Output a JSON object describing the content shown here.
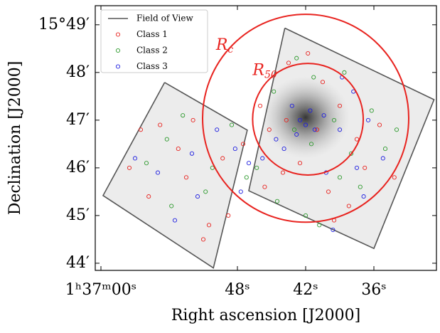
{
  "chart_data": {
    "type": "scatter",
    "xlabel": "Right ascension [J2000]",
    "ylabel": "Declination [J2000]",
    "xlim": [
      60.5,
      30.5
    ],
    "ylim": [
      43.85,
      49.4
    ],
    "xticks": [
      {
        "value": 60,
        "label": "1ʰ37ᵐ00ˢ"
      },
      {
        "value": 48,
        "label": "48ˢ"
      },
      {
        "value": 42,
        "label": "42ˢ"
      },
      {
        "value": 36,
        "label": "36ˢ"
      }
    ],
    "yticks": [
      {
        "value": 44,
        "label": "44′"
      },
      {
        "value": 45,
        "label": "45′"
      },
      {
        "value": 46,
        "label": "46′"
      },
      {
        "value": 47,
        "label": "47′"
      },
      {
        "value": 48,
        "label": "48′"
      },
      {
        "value": 49,
        "label": "15°49′"
      }
    ],
    "legend": "upper left",
    "series": [
      {
        "name": "Field of View",
        "color": "#555555",
        "marker": "line",
        "x": [
          43.83,
          30.71,
          36.0,
          47.0,
          43.83,
          null,
          54.4,
          47.13,
          50.11,
          59.81,
          54.4
        ],
        "y": [
          48.93,
          47.43,
          44.31,
          45.52,
          48.93,
          null,
          47.79,
          46.79,
          43.9,
          45.42,
          47.79
        ]
      },
      {
        "name": "Class 1",
        "color": "#e8231f",
        "marker": "circle",
        "x": [
          56.5,
          55.8,
          57.5,
          53.2,
          51.9,
          50.5,
          51.0,
          49.3,
          47.5,
          46.0,
          45.2,
          44.0,
          43.5,
          41.8,
          40.5,
          39.0,
          37.5,
          36.8,
          38.2,
          40.0,
          42.5,
          43.7,
          41.0,
          35.5,
          34.2,
          39.5,
          45.6,
          52.5,
          54.8,
          48.8
        ],
        "y": [
          46.8,
          45.4,
          46.0,
          46.4,
          47.0,
          44.8,
          44.5,
          46.2,
          46.5,
          47.3,
          46.8,
          45.9,
          48.2,
          48.4,
          47.8,
          47.3,
          46.6,
          46.0,
          45.2,
          45.5,
          46.1,
          47.0,
          46.8,
          46.9,
          45.8,
          44.9,
          45.6,
          45.8,
          46.9,
          45.0
        ]
      },
      {
        "name": "Class 2",
        "color": "#2e9a2e",
        "marker": "circle",
        "x": [
          56.0,
          54.2,
          52.8,
          50.2,
          48.5,
          47.2,
          46.3,
          44.8,
          42.8,
          41.3,
          39.5,
          38.0,
          36.2,
          35.0,
          37.2,
          39.0,
          41.5,
          43.0,
          44.5,
          42.0,
          40.8,
          38.6,
          53.8,
          50.8,
          34.0
        ],
        "y": [
          46.1,
          46.6,
          47.1,
          46.0,
          46.9,
          45.8,
          46.0,
          47.6,
          48.3,
          47.9,
          47.0,
          46.3,
          47.2,
          46.4,
          45.6,
          45.8,
          46.5,
          46.8,
          45.3,
          45.0,
          44.8,
          48.0,
          45.2,
          45.5,
          46.8
        ]
      },
      {
        "name": "Class 3",
        "color": "#1f1fe0",
        "marker": "circle",
        "x": [
          57.0,
          55.0,
          52.0,
          51.5,
          49.8,
          48.2,
          47.0,
          45.8,
          44.6,
          43.2,
          42.5,
          42.0,
          41.6,
          42.8,
          41.2,
          40.4,
          39.0,
          37.8,
          36.5,
          35.2,
          37.5,
          40.2,
          39.6,
          36.9,
          38.8,
          43.9,
          47.7,
          53.5
        ],
        "y": [
          46.2,
          45.9,
          46.3,
          45.4,
          46.8,
          46.4,
          46.1,
          46.2,
          46.6,
          47.3,
          47.0,
          46.9,
          47.2,
          46.7,
          46.8,
          47.1,
          46.8,
          47.6,
          47.0,
          46.2,
          46.0,
          45.9,
          44.7,
          45.4,
          47.9,
          46.4,
          45.5,
          44.9
        ]
      }
    ],
    "circles": [
      {
        "label": "R",
        "subscript": "c",
        "color": "#e8231f",
        "x": 42.0,
        "y": 47.04,
        "radius": 2.18
      },
      {
        "label": "R",
        "subscript": "50",
        "color": "#e8231f",
        "x": 41.8,
        "y": 47.02,
        "radius": 1.17
      }
    ]
  }
}
